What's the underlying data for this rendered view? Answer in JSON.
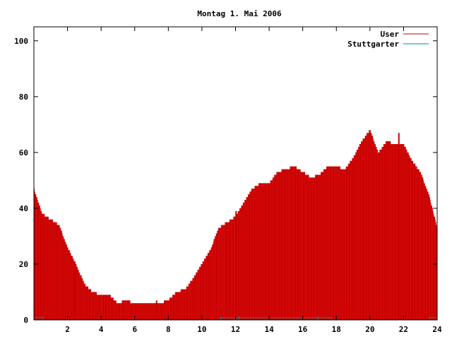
{
  "chart_data": {
    "type": "bar",
    "title": "Montag 1. Mai 2006",
    "xlabel": "",
    "ylabel": "",
    "xlim": [
      0,
      24
    ],
    "ylim": [
      0,
      105
    ],
    "x_ticks": [
      2,
      4,
      6,
      8,
      10,
      12,
      14,
      16,
      18,
      20,
      22,
      24
    ],
    "y_ticks": [
      0,
      20,
      40,
      60,
      80,
      100
    ],
    "grid": false,
    "legend_position": "top-right",
    "series": [
      {
        "name": "User",
        "color": "#cc0000",
        "x": [
          0,
          0.5,
          1,
          1.5,
          2,
          2.5,
          3,
          3.5,
          4,
          4.5,
          5,
          5.5,
          6,
          6.5,
          7,
          7.5,
          8,
          8.5,
          9,
          9.5,
          10,
          10.5,
          11,
          11.5,
          12,
          12.5,
          13,
          13.5,
          14,
          14.5,
          15,
          15.5,
          16,
          16.5,
          17,
          17.5,
          18,
          18.5,
          19,
          19.5,
          20,
          20.5,
          21,
          21.5,
          22,
          22.5,
          23,
          23.5,
          24
        ],
        "values": [
          47,
          38,
          36,
          34,
          26,
          20,
          13,
          10,
          9,
          9,
          6,
          7,
          6,
          6,
          6,
          6,
          7,
          10,
          11,
          15,
          20,
          25,
          33,
          35,
          37,
          42,
          47,
          49,
          49,
          53,
          54,
          55,
          53,
          51,
          52,
          55,
          55,
          54,
          58,
          64,
          68,
          60,
          64,
          63,
          63,
          57,
          53,
          45,
          33
        ],
        "highlight_bars": [
          {
            "x": 2.43,
            "value": 21
          },
          {
            "x": 7.3,
            "value": 7
          },
          {
            "x": 12.03,
            "value": 39
          },
          {
            "x": 21.72,
            "value": 67
          }
        ]
      },
      {
        "name": "Stuttgarter",
        "color": "#008b8b",
        "segments": [
          {
            "x_start": 0,
            "x_end": 0.55,
            "value": 0.8
          },
          {
            "x_start": 11.1,
            "x_end": 12.2,
            "value": 0.8
          },
          {
            "x_start": 12.2,
            "x_end": 16.9,
            "value": 0.8
          },
          {
            "x_start": 16.9,
            "x_end": 17.7,
            "value": 0.8
          },
          {
            "x_start": 23.55,
            "x_end": 24,
            "value": 0.8
          }
        ]
      }
    ]
  }
}
